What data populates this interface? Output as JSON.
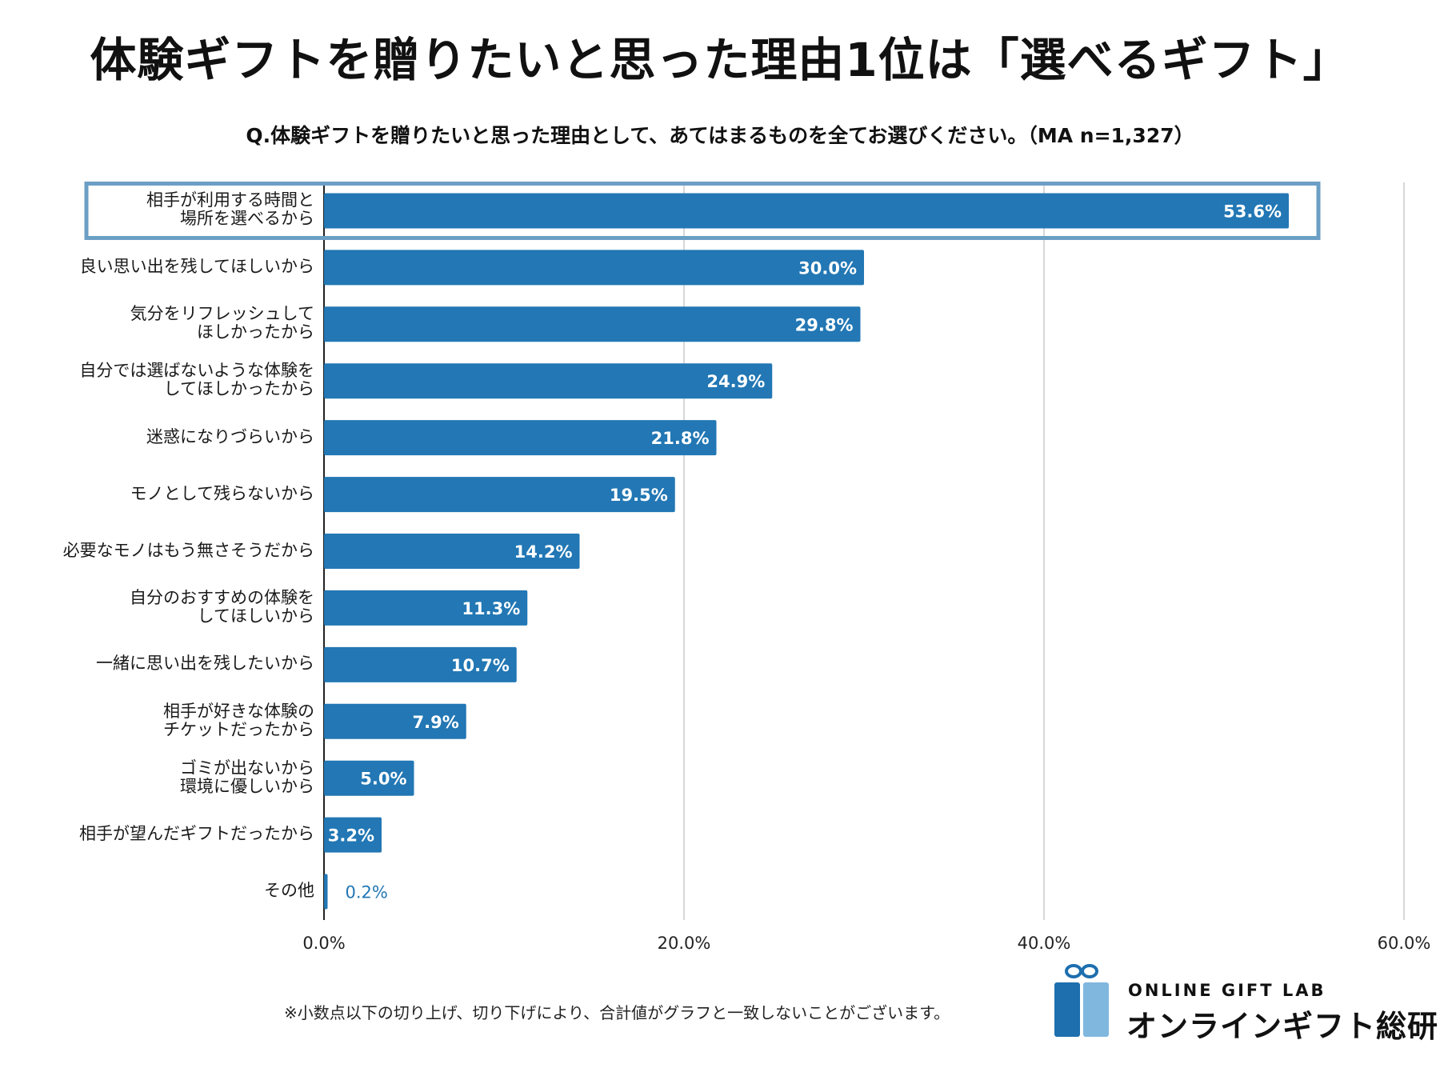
{
  "header": {
    "title": "体験ギフトを贈りたいと思った理由1位は「選べるギフト」",
    "subtitle": "Q.体験ギフトを贈りたいと思った理由として、あてはまるものを全てお選びください。（MA n=1,327）"
  },
  "footnote": "※小数点以下の切り上げ、切り下げにより、合計値がグラフと一致しないことがございます。",
  "logo": {
    "en": "ONLINE GIFT LAB",
    "jp": "オンラインギフト総研",
    "icon": "gift-box-icon"
  },
  "colors": {
    "bar": "#2277b4",
    "highlight": "#6b9fc5",
    "grid": "#cccccc",
    "axis": "#222222",
    "value_label_inside": "#ffffff",
    "value_label_outside": "#2277b4",
    "logo_dark": "#1d6fae",
    "logo_light": "#7fb7df"
  },
  "chart_data": {
    "type": "bar",
    "orientation": "horizontal",
    "categories": [
      "相手が利用する時間と\n場所を選べるから",
      "良い思い出を残してほしいから",
      "気分をリフレッシュして\nほしかったから",
      "自分では選ばないような体験を\nしてほしかったから",
      "迷惑になりづらいから",
      "モノとして残らないから",
      "必要なモノはもう無さそうだから",
      "自分のおすすめの体験を\nしてほしいから",
      "一緒に思い出を残したいから",
      "相手が好きな体験の\nチケットだったから",
      "ゴミが出ないから\n環境に優しいから",
      "相手が望んだギフトだったから",
      "その他"
    ],
    "values": [
      53.6,
      30.0,
      29.8,
      24.9,
      21.8,
      19.5,
      14.2,
      11.3,
      10.7,
      7.9,
      5.0,
      3.2,
      0.2
    ],
    "value_labels": [
      "53.6%",
      "30.0%",
      "29.8%",
      "24.9%",
      "21.8%",
      "19.5%",
      "14.2%",
      "11.3%",
      "10.7%",
      "7.9%",
      "5.0%",
      "3.2%",
      "0.2%"
    ],
    "xlim": [
      0,
      60
    ],
    "xticks": [
      0,
      20,
      40,
      60
    ],
    "xtick_labels": [
      "0.0%",
      "20.0%",
      "40.0%",
      "60.0%"
    ],
    "highlight_index": 0,
    "grid": true,
    "xlabel": "",
    "ylabel": ""
  }
}
